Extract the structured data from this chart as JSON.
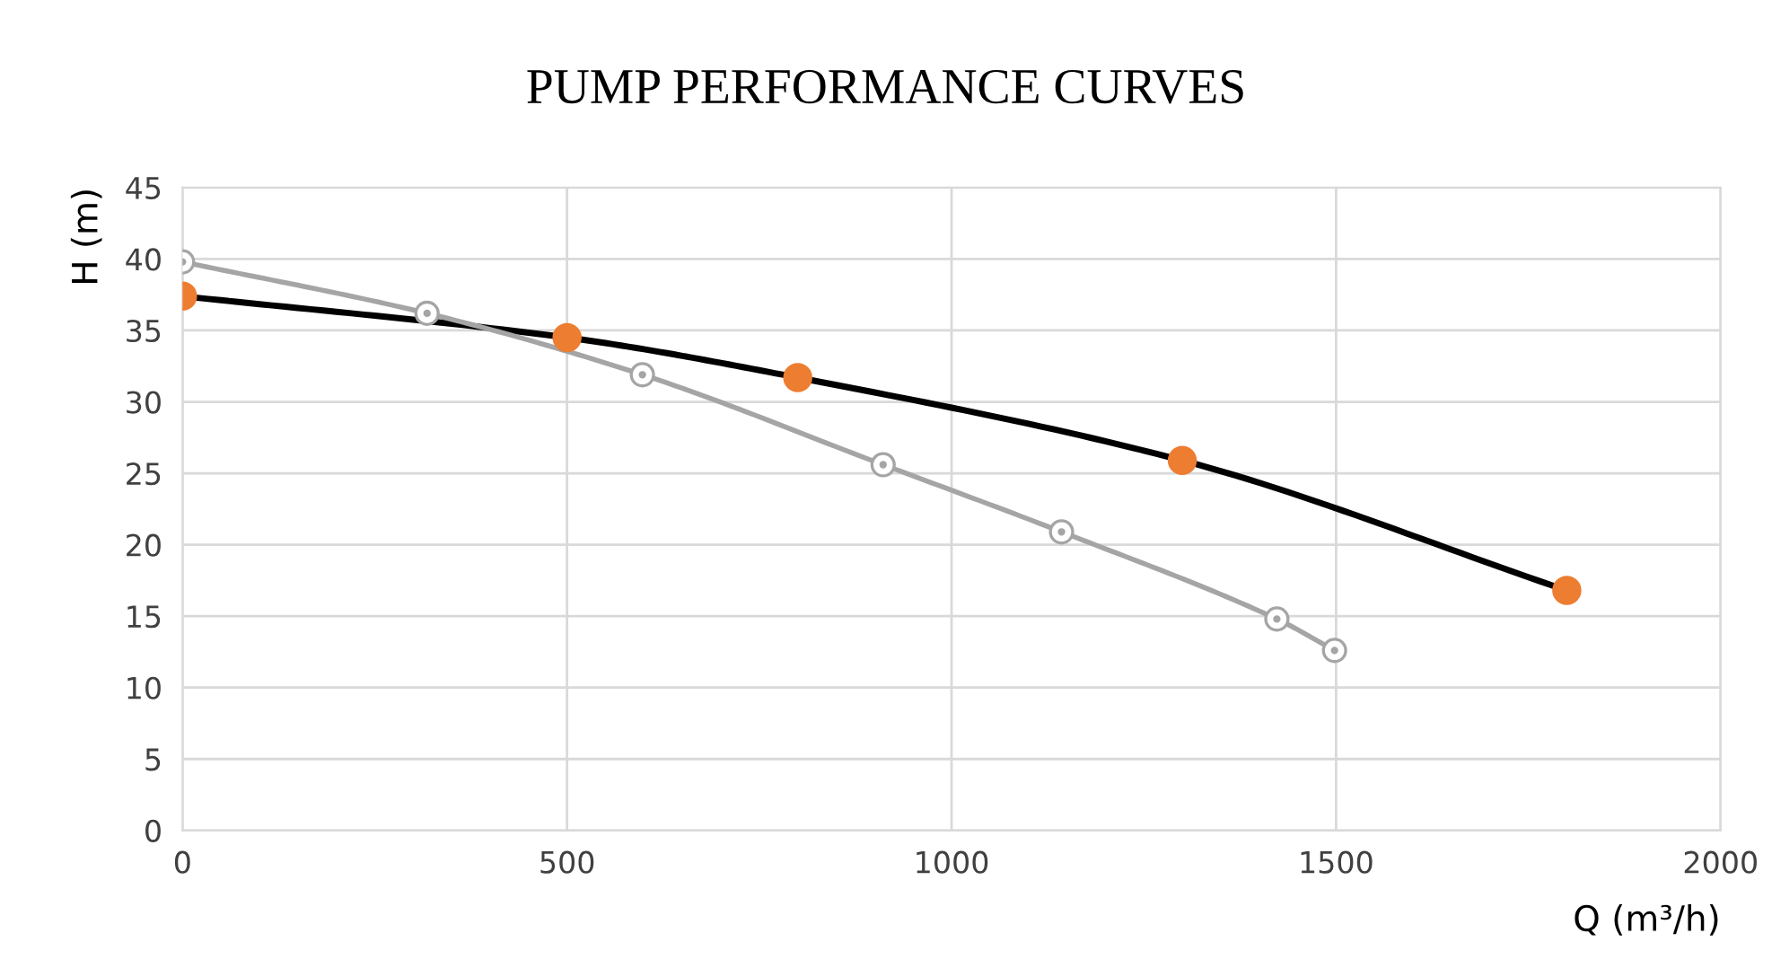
{
  "chart_data": {
    "type": "line",
    "title": "PUMP PERFORMANCE CURVES",
    "xlabel": "Q (m³/h)",
    "ylabel": "H (m)",
    "series": [
      {
        "color": "#000000",
        "colors": [
          "#ed7d31",
          "#ed7d31",
          "#ed7d31",
          "#ed7d31",
          "#ed7d31"
        ],
        "x": [
          0,
          500,
          800,
          1300,
          1800
        ],
        "values": [
          37.4,
          34.5,
          31.7,
          25.9,
          16.8
        ]
      },
      {
        "color": "#a5a5a5",
        "colors": [
          "#ffffff",
          "#ffffff",
          "#ffffff",
          "#ffffff",
          "#ffffff",
          "#ffffff",
          "#ffffff"
        ],
        "x": [
          0,
          318,
          598,
          911,
          1143,
          1423,
          1498
        ],
        "values": [
          39.8,
          36.2,
          31.9,
          25.6,
          20.9,
          14.8,
          12.6
        ]
      }
    ],
    "xlim": [
      0,
      2000
    ],
    "xticks": [
      0,
      500,
      1000,
      1500,
      2000
    ],
    "ylim": [
      0,
      45
    ],
    "yticks": [
      0,
      5,
      10,
      15,
      20,
      25,
      30,
      35,
      40,
      45
    ],
    "grid": true,
    "marker": "circle",
    "line_style": "solid",
    "legend": false
  }
}
